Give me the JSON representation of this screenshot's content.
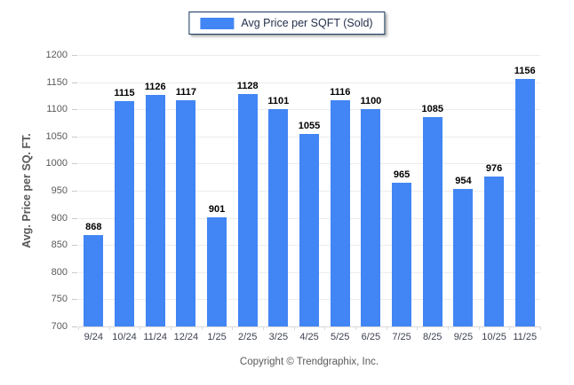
{
  "legend": {
    "swatch_icon": "blue-square-swatch"
  },
  "footer": {
    "text": "Copyright © Trendgraphix, Inc."
  },
  "colors": {
    "bar": "#4285f4",
    "legend_border": "#17375e",
    "gridline": "#ececec",
    "axis_text": "#595959"
  },
  "chart_data": {
    "type": "bar",
    "title": "",
    "xlabel": "",
    "ylabel": "Avg. Price per SQ. FT.",
    "categories": [
      "9/24",
      "10/24",
      "11/24",
      "12/24",
      "1/25",
      "2/25",
      "3/25",
      "4/25",
      "5/25",
      "6/25",
      "7/25",
      "8/25",
      "9/25",
      "10/25",
      "11/25"
    ],
    "series": [
      {
        "name": "Avg Price per SQFT (Sold)",
        "color": "#4285f4",
        "values": [
          868,
          1115,
          1126,
          1117,
          901,
          1128,
          1101,
          1055,
          1116,
          1100,
          965,
          1085,
          954,
          976,
          1156
        ]
      }
    ],
    "ylim": [
      700,
      1200
    ],
    "ytick_step": 50,
    "grid": true,
    "value_labels": true,
    "legend_position": "top-center"
  }
}
